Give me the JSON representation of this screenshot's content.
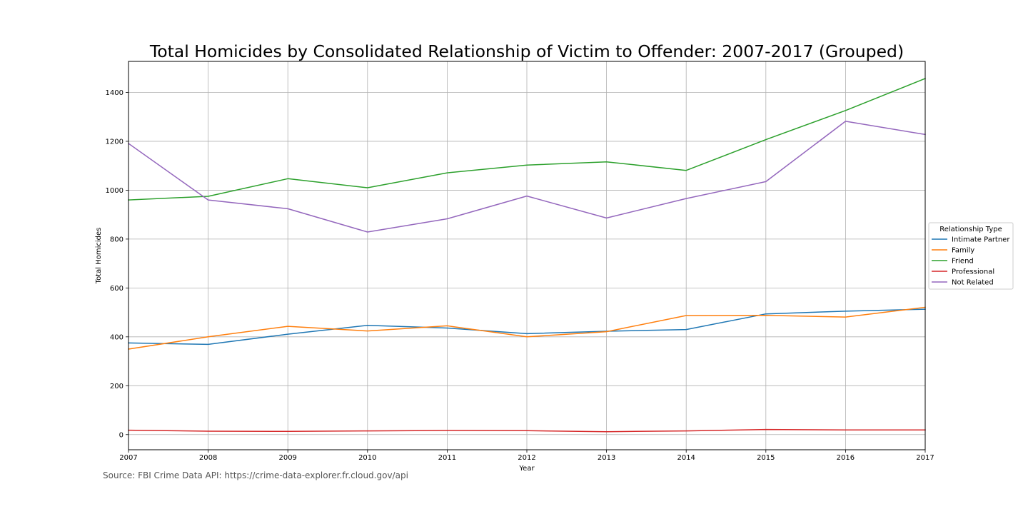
{
  "chart_data": {
    "type": "line",
    "title": "Total Homicides by Consolidated Relationship of Victim to Offender: 2007-2017 (Grouped)",
    "xlabel": "Year",
    "ylabel": "Total Homicides",
    "x": [
      2007,
      2008,
      2009,
      2010,
      2011,
      2012,
      2013,
      2014,
      2015,
      2016,
      2017
    ],
    "xlim": [
      2007,
      2017
    ],
    "ylim": [
      -62,
      1527
    ],
    "yticks": [
      0,
      200,
      400,
      600,
      800,
      1000,
      1200,
      1400
    ],
    "grid": true,
    "legend": {
      "title": "Relationship Type",
      "placement": "right"
    },
    "series": [
      {
        "name": "Intimate Partner",
        "color": "#1f77b4",
        "values": [
          375,
          369,
          411,
          447,
          436,
          413,
          423,
          430,
          494,
          505,
          513
        ]
      },
      {
        "name": "Family",
        "color": "#ff7f0e",
        "values": [
          350,
          400,
          443,
          424,
          445,
          400,
          421,
          487,
          488,
          481,
          521
        ]
      },
      {
        "name": "Friend",
        "color": "#2ca02c",
        "values": [
          960,
          975,
          1047,
          1010,
          1071,
          1103,
          1116,
          1081,
          1207,
          1326,
          1457
        ]
      },
      {
        "name": "Professional",
        "color": "#d62728",
        "values": [
          18,
          14,
          13,
          15,
          17,
          16,
          12,
          15,
          21,
          19,
          19
        ]
      },
      {
        "name": "Not Related",
        "color": "#9467bd",
        "values": [
          1191,
          960,
          924,
          829,
          883,
          976,
          886,
          966,
          1035,
          1282,
          1228
        ]
      }
    ]
  },
  "source": "Source: FBI Crime Data API: https://crime-data-explorer.fr.cloud.gov/api"
}
